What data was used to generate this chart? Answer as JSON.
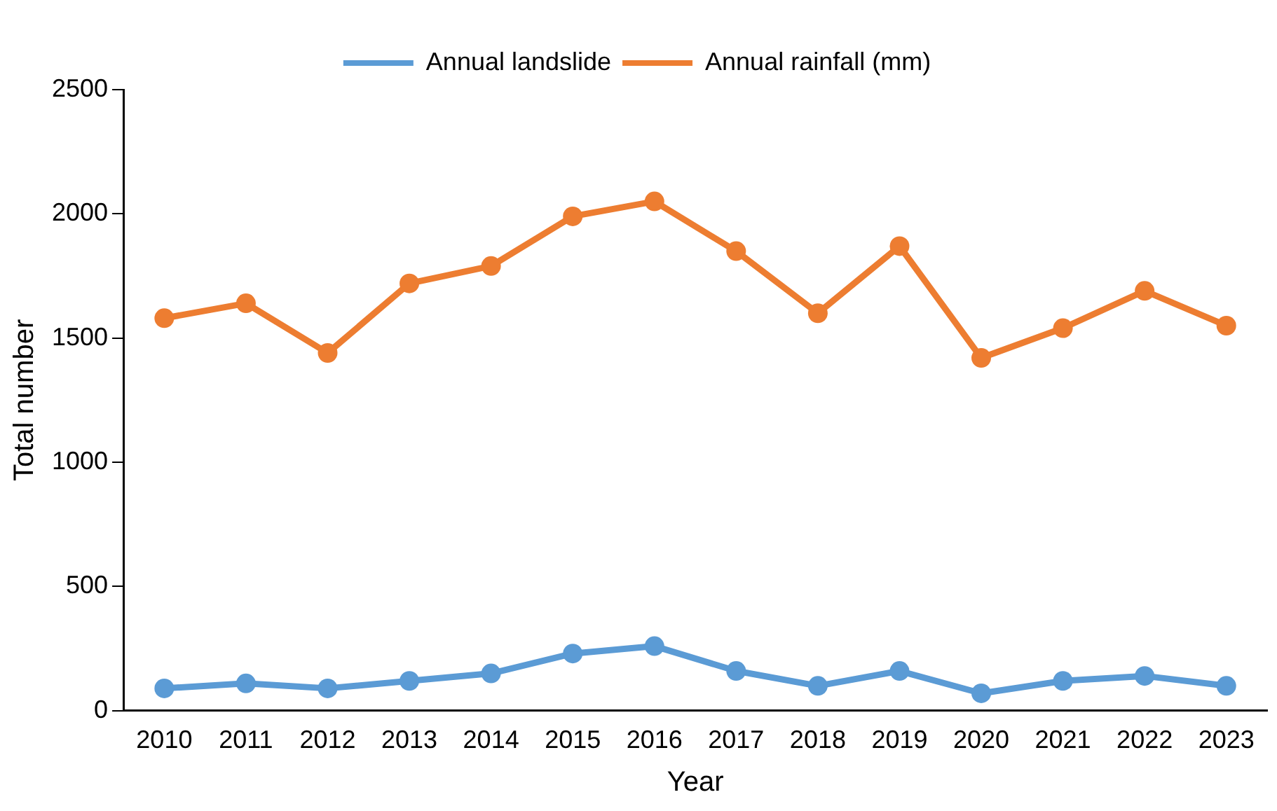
{
  "chart_data": {
    "type": "line",
    "xlabel": "Year",
    "ylabel": "Total number",
    "categories": [
      "2010",
      "2011",
      "2012",
      "2013",
      "2014",
      "2015",
      "2016",
      "2017",
      "2018",
      "2019",
      "2020",
      "2021",
      "2022",
      "2023"
    ],
    "series": [
      {
        "name": "Annual landslide",
        "color": "#5b9bd5",
        "values": [
          90,
          110,
          90,
          120,
          150,
          230,
          260,
          160,
          100,
          160,
          70,
          120,
          140,
          100
        ]
      },
      {
        "name": "Annual rainfall (mm)",
        "color": "#ed7d31",
        "values": [
          1580,
          1640,
          1440,
          1720,
          1790,
          1990,
          2050,
          1850,
          1600,
          1870,
          1420,
          1540,
          1690,
          1550
        ]
      }
    ],
    "ylim": [
      0,
      2500
    ],
    "yticks": [
      0,
      500,
      1000,
      1500,
      2000,
      2500
    ],
    "grid": false,
    "legend": "top",
    "marker": "circle",
    "line_style": "solid"
  }
}
